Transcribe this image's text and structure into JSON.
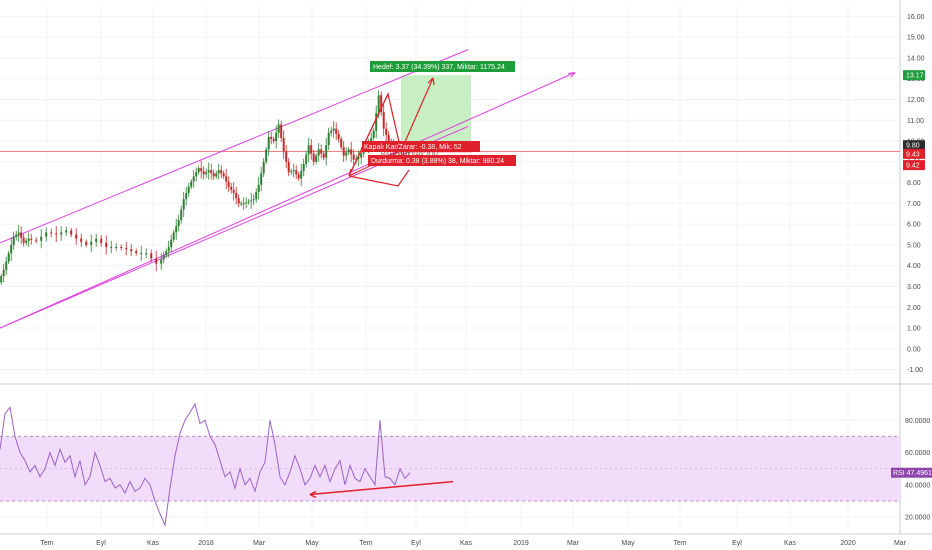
{
  "chart_data": {
    "type": "line",
    "main_axis": {
      "ticks": [
        "16.00",
        "15.00",
        "14.00",
        "13.00",
        "12.00",
        "11.00",
        "10.00",
        "9.00",
        "8.00",
        "7.00",
        "6.00",
        "5.00",
        "4.00",
        "3.00",
        "2.00",
        "1.00",
        "0.00",
        "-1.00"
      ],
      "ylim": [
        -1.5,
        16.5
      ]
    },
    "rsi_axis": {
      "ticks": [
        "80.0000",
        "60.0000",
        "40.0000",
        "20.0000"
      ],
      "ylim": [
        12,
        100
      ],
      "band": [
        30,
        70
      ]
    },
    "x_ticks": [
      "Tem",
      "Eyl",
      "Kas",
      "2018",
      "Mar",
      "May",
      "Tem",
      "Eyl",
      "Kas",
      "2019",
      "Mar",
      "May",
      "Tem",
      "Eyl",
      "Kas",
      "2020",
      "Mar"
    ],
    "price_series": {
      "x": [
        0,
        5,
        10,
        15,
        20,
        25,
        30,
        40,
        50,
        60,
        70,
        80,
        90,
        100,
        110,
        120,
        130,
        140,
        150,
        160,
        165,
        170,
        175,
        180,
        185,
        190,
        195,
        200,
        205,
        210,
        215,
        220,
        225,
        230,
        235,
        240,
        245,
        250,
        255,
        260,
        265,
        270,
        275,
        280,
        285,
        290,
        295,
        300,
        305,
        310,
        315,
        320,
        325,
        330,
        335,
        340,
        345,
        350,
        355,
        360,
        365,
        370,
        375,
        380,
        385,
        390,
        395,
        400,
        405,
        410
      ],
      "y": [
        3.2,
        3.8,
        4.6,
        5.4,
        5.6,
        5.1,
        5.3,
        5.2,
        5.6,
        5.5,
        5.7,
        5.3,
        5.0,
        5.3,
        4.9,
        4.9,
        4.8,
        4.6,
        4.6,
        4.1,
        4.5,
        4.9,
        5.6,
        6.2,
        7.2,
        7.8,
        8.3,
        8.7,
        8.4,
        8.6,
        8.3,
        8.6,
        8.3,
        7.8,
        7.5,
        7.0,
        7.0,
        7.1,
        7.2,
        7.9,
        9.0,
        10.2,
        10.0,
        10.8,
        9.5,
        8.5,
        8.6,
        8.2,
        8.9,
        9.8,
        9.0,
        9.6,
        9.2,
        10.4,
        10.6,
        10.1,
        9.3,
        9.6,
        9.1,
        9.2,
        9.6,
        9.8,
        10.5,
        12.2,
        10.6,
        10.0,
        9.6,
        9.6,
        9.5,
        9.6
      ]
    },
    "rsi_series": {
      "x": [
        0,
        5,
        10,
        15,
        20,
        25,
        30,
        35,
        40,
        45,
        50,
        55,
        60,
        65,
        70,
        75,
        80,
        85,
        90,
        95,
        100,
        105,
        110,
        115,
        120,
        125,
        130,
        135,
        140,
        145,
        150,
        155,
        160,
        165,
        170,
        175,
        180,
        185,
        190,
        195,
        200,
        205,
        210,
        215,
        220,
        225,
        230,
        235,
        240,
        245,
        250,
        255,
        260,
        265,
        270,
        275,
        280,
        285,
        290,
        295,
        300,
        305,
        310,
        315,
        320,
        325,
        330,
        335,
        340,
        345,
        350,
        355,
        360,
        365,
        370,
        375,
        380,
        385,
        390,
        395,
        400,
        405,
        410
      ],
      "y": [
        62,
        84,
        88,
        70,
        60,
        55,
        48,
        52,
        45,
        50,
        60,
        52,
        62,
        54,
        58,
        45,
        55,
        40,
        45,
        60,
        52,
        42,
        44,
        38,
        40,
        35,
        42,
        36,
        38,
        44,
        40,
        30,
        22,
        15,
        38,
        58,
        72,
        80,
        85,
        90,
        78,
        80,
        70,
        65,
        55,
        45,
        48,
        38,
        50,
        40,
        44,
        36,
        48,
        54,
        80,
        65,
        45,
        40,
        48,
        58,
        50,
        40,
        44,
        52,
        45,
        52,
        42,
        50,
        55,
        40,
        52,
        44,
        42,
        50,
        45,
        40,
        80,
        45,
        44,
        40,
        50,
        44,
        47.4961
      ]
    },
    "channel": {
      "upper": {
        "x": [
          0,
          468
        ],
        "y": [
          5.1,
          14.4
        ]
      },
      "lower": {
        "x": [
          0,
          468
        ],
        "y": [
          1.0,
          10.7
        ]
      },
      "outer": {
        "x": [
          0,
          575
        ],
        "y": [
          1.0,
          13.3
        ]
      }
    },
    "horizontal_level": 9.5,
    "target_box": {
      "x": [
        401,
        471
      ],
      "y": [
        9.8,
        13.17
      ]
    },
    "stop_box": {
      "x": [
        401,
        471
      ],
      "y": [
        9.43,
        9.8
      ]
    },
    "rsi_trend": {
      "x": [
        310,
        453
      ],
      "y": [
        34,
        42
      ]
    },
    "annotations": {
      "target": "Hedef: 3.37 (34.39%) 337, Miktar: 1175.24",
      "closed_pl": "Kapalı Kar/Zarar: -0.38, Mik: 52",
      "stop": "Durdurma: 0.38 (3.88%) 38, Miktar: 980.24",
      "overlap_text": "Risk/Ödül Oranı: 8.87"
    },
    "price_tags": [
      {
        "text": "13.17",
        "value": 13.17,
        "color": "#1e9e3a"
      },
      {
        "text": "9.80",
        "value": 9.8,
        "color": "#2b2b2b"
      },
      {
        "text": "9.43",
        "value": 9.43,
        "color": "#e0202a"
      },
      {
        "text": "9.42",
        "value": 9.42,
        "color": "#e0202a"
      }
    ],
    "rsi_tag": {
      "text": "RSI 47.4961",
      "value": 47.4961,
      "color": "#8e44ad"
    },
    "colors": {
      "channel": "#e040e0",
      "candle_up": "#2e7d32",
      "candle_down": "#c62828",
      "rsi_line": "#9c62c8",
      "rsi_band": "#f1dcfa",
      "target_fill": "#c8efc3",
      "stop_fill": "#f8c9c9",
      "red": "#e0202a",
      "green": "#1e9e3a"
    },
    "grid": true
  }
}
